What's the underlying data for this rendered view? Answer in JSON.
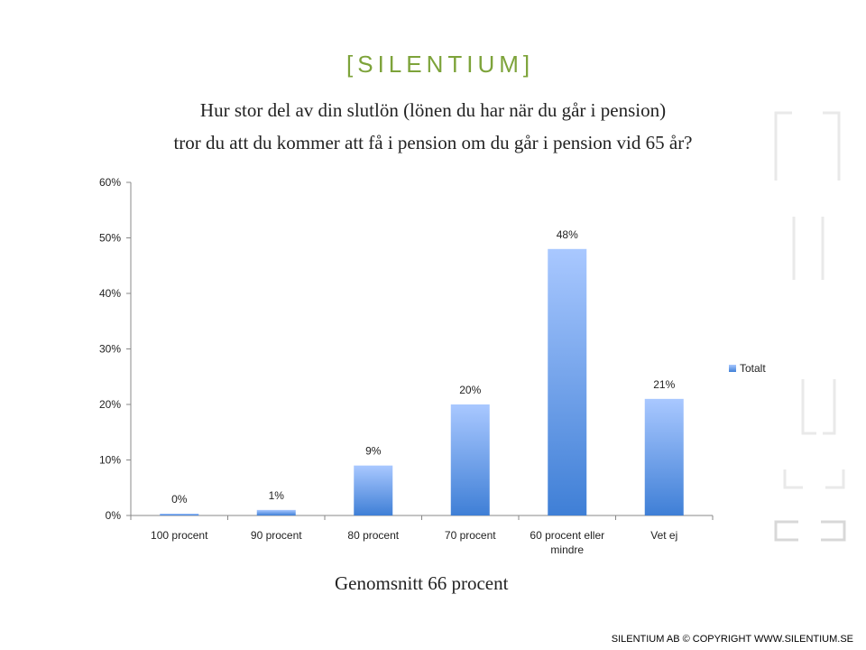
{
  "header": {
    "logo": "[SILENTIUM]",
    "title_line1": "Hur stor del av din slutlön (lönen du har när du går i pension)",
    "title_line2": "tror du att du kommer att få i pension om du går i pension vid 65 år?"
  },
  "subtitle": "Genomsnitt 66 procent",
  "footer": "SILENTIUM AB © COPYRIGHT WWW.SILENTIUM.SE",
  "colors": {
    "bar_top": "#a9c8ff",
    "bar_bottom": "#3f7fd6",
    "brand": "#7da33a"
  },
  "chart_data": {
    "type": "bar",
    "categories": [
      "100 procent",
      "90 procent",
      "80 procent",
      "70 procent",
      "60 procent eller mindre",
      "Vet ej"
    ],
    "series": [
      {
        "name": "Totalt",
        "values": [
          0,
          1,
          9,
          20,
          48,
          21
        ]
      }
    ],
    "data_labels": [
      "0%",
      "1%",
      "9%",
      "20%",
      "48%",
      "21%"
    ],
    "y_ticks": [
      "0%",
      "10%",
      "20%",
      "30%",
      "40%",
      "50%",
      "60%"
    ],
    "ylim": [
      0,
      60
    ],
    "legend": "right",
    "grid": false
  }
}
